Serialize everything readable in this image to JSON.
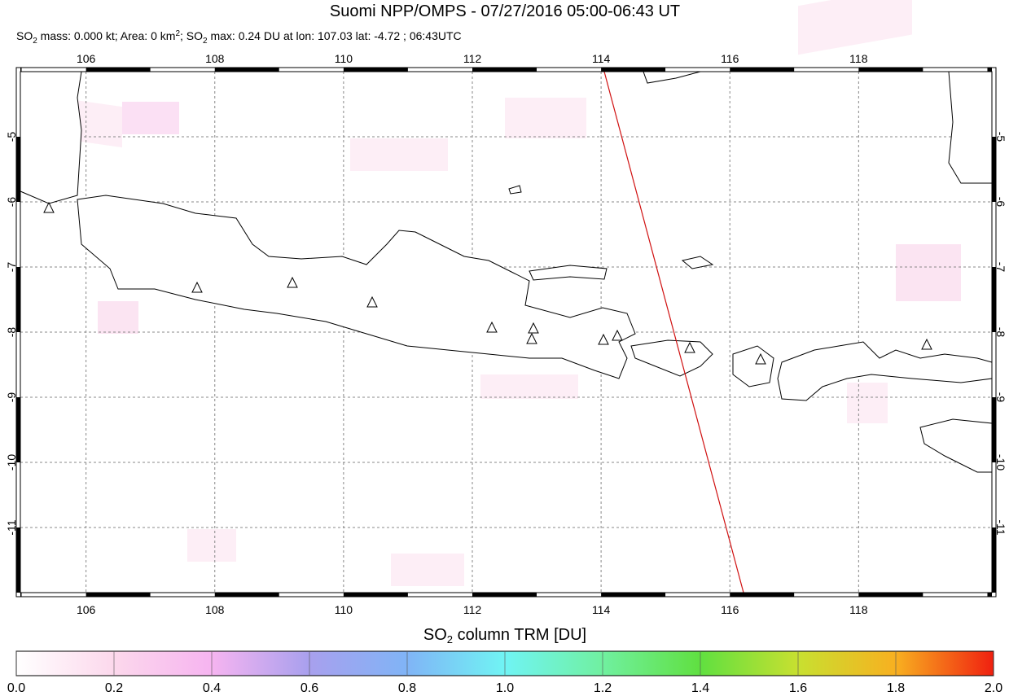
{
  "map": {
    "title": "Suomi NPP/OMPS - 07/27/2016 05:00-06:43 UT",
    "subtitle": [
      "SO",
      "2",
      " mass: 0.000 kt; Area: 0 km",
      "2",
      "; SO",
      "2",
      " max: 0.24 DU at lon: 107.03 lat: -4.72 ; 06:43UTC"
    ],
    "xlim": [
      104.98,
      120.07
    ],
    "ylim": [
      -12,
      -4
    ],
    "xticks": [
      106,
      108,
      110,
      112,
      114,
      116,
      118
    ],
    "yticks": [
      -5,
      -6,
      -7,
      -8,
      -9,
      -10,
      -11
    ],
    "grid": true,
    "colorbar": {
      "label": [
        "SO",
        "2",
        " column TRM [DU]"
      ],
      "lim": [
        0,
        2
      ],
      "ticks": [
        {
          "value": 0,
          "label": "0.0"
        },
        {
          "value": 0.2,
          "label": "0.2"
        },
        {
          "value": 0.4,
          "label": "0.4"
        },
        {
          "value": 0.6,
          "label": "0.6"
        },
        {
          "value": 0.8,
          "label": "0.8"
        },
        {
          "value": 1,
          "label": "1.0"
        },
        {
          "value": 1.2,
          "label": "1.2"
        },
        {
          "value": 1.4,
          "label": "1.4"
        },
        {
          "value": 1.6,
          "label": "1.6"
        },
        {
          "value": 1.8,
          "label": "1.8"
        },
        {
          "value": 2,
          "label": "2.0"
        }
      ]
    }
  }
}
